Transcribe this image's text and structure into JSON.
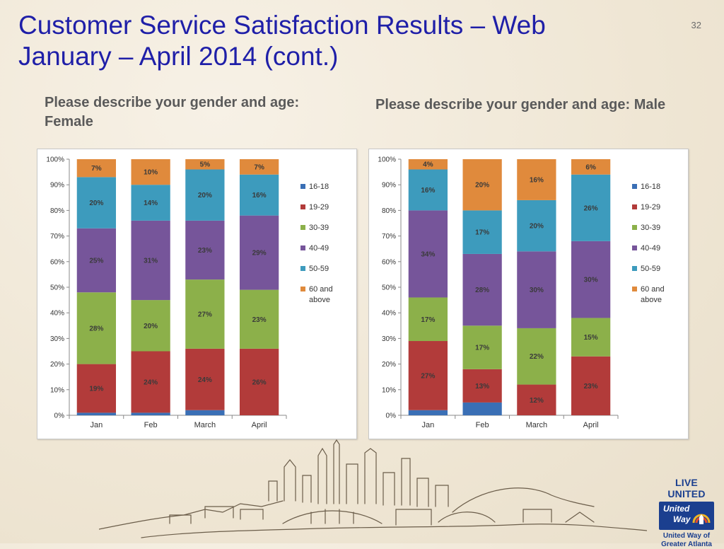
{
  "slide": {
    "title_line1": "Customer Service Satisfaction Results – Web",
    "title_line2": "January – April 2014 (cont.)",
    "number": "32",
    "subtitle_left": "Please describe your gender and age: Female",
    "subtitle_right": "Please describe your gender and age: Male"
  },
  "colors": {
    "16-18": "#3a6fb5",
    "19-29": "#b23b3a",
    "30-39": "#8cb04a",
    "40-49": "#76559a",
    "50-59": "#3d9bbd",
    "60 and above": "#e08a3c"
  },
  "chart_data": [
    {
      "type": "bar",
      "stacked": true,
      "title": "",
      "categories": [
        "Jan",
        "Feb",
        "March",
        "April"
      ],
      "ylim": [
        0,
        100
      ],
      "yticks": [
        "0%",
        "10%",
        "20%",
        "30%",
        "40%",
        "50%",
        "60%",
        "70%",
        "80%",
        "90%",
        "100%"
      ],
      "legend_position": "right",
      "series": [
        {
          "name": "16-18",
          "values": [
            1,
            1,
            2,
            0
          ],
          "labels": [
            "",
            "",
            "",
            ""
          ]
        },
        {
          "name": "19-29",
          "values": [
            19,
            24,
            24,
            26
          ],
          "labels": [
            "19%",
            "24%",
            "24%",
            "26%"
          ]
        },
        {
          "name": "30-39",
          "values": [
            28,
            20,
            27,
            23
          ],
          "labels": [
            "28%",
            "20%",
            "27%",
            "23%"
          ]
        },
        {
          "name": "40-49",
          "values": [
            25,
            31,
            23,
            29
          ],
          "labels": [
            "25%",
            "31%",
            "23%",
            "29%"
          ]
        },
        {
          "name": "50-59",
          "values": [
            20,
            14,
            20,
            16
          ],
          "labels": [
            "20%",
            "14%",
            "20%",
            "16%"
          ]
        },
        {
          "name": "60 and above",
          "values": [
            7,
            10,
            5,
            7
          ],
          "labels": [
            "7%",
            "10%",
            "5%",
            "7%"
          ]
        }
      ]
    },
    {
      "type": "bar",
      "stacked": true,
      "title": "",
      "categories": [
        "Jan",
        "Feb",
        "March",
        "April"
      ],
      "ylim": [
        0,
        100
      ],
      "yticks": [
        "0%",
        "10%",
        "20%",
        "30%",
        "40%",
        "50%",
        "60%",
        "70%",
        "80%",
        "90%",
        "100%"
      ],
      "legend_position": "right",
      "series": [
        {
          "name": "16-18",
          "values": [
            2,
            5,
            0,
            0
          ],
          "labels": [
            "",
            "",
            "",
            ""
          ]
        },
        {
          "name": "19-29",
          "values": [
            27,
            13,
            12,
            23
          ],
          "labels": [
            "27%",
            "13%",
            "12%",
            "23%"
          ]
        },
        {
          "name": "30-39",
          "values": [
            17,
            17,
            22,
            15
          ],
          "labels": [
            "17%",
            "17%",
            "22%",
            "15%"
          ]
        },
        {
          "name": "40-49",
          "values": [
            34,
            28,
            30,
            30
          ],
          "labels": [
            "34%",
            "28%",
            "30%",
            "30%"
          ]
        },
        {
          "name": "50-59",
          "values": [
            16,
            17,
            20,
            26
          ],
          "labels": [
            "16%",
            "17%",
            "20%",
            "26%"
          ]
        },
        {
          "name": "60 and above",
          "values": [
            4,
            20,
            16,
            6
          ],
          "labels": [
            "4%",
            "20%",
            "16%",
            "6%"
          ]
        }
      ]
    }
  ],
  "logo": {
    "tagline": "LIVE UNITED",
    "word1": "United",
    "word2": "Way",
    "org_line1": "United Way of",
    "org_line2": "Greater Atlanta"
  }
}
